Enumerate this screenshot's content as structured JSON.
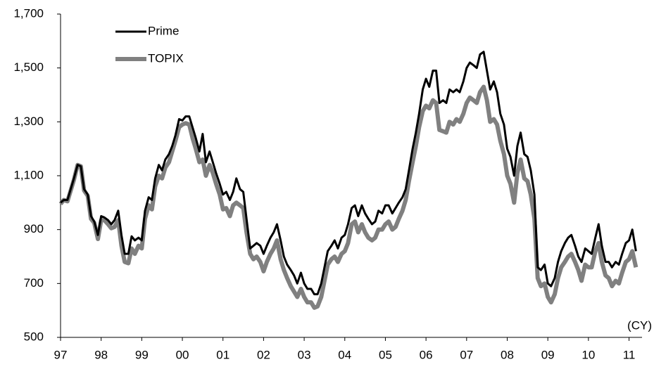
{
  "chart_data": {
    "type": "line",
    "x": [
      1997,
      1997.08,
      1997.17,
      1997.25,
      1997.33,
      1997.42,
      1997.5,
      1997.58,
      1997.67,
      1997.75,
      1997.83,
      1997.92,
      1998,
      1998.08,
      1998.17,
      1998.25,
      1998.33,
      1998.42,
      1998.5,
      1998.58,
      1998.67,
      1998.75,
      1998.83,
      1998.92,
      1999,
      1999.08,
      1999.17,
      1999.25,
      1999.33,
      1999.42,
      1999.5,
      1999.58,
      1999.67,
      1999.75,
      1999.83,
      1999.92,
      2000,
      2000.08,
      2000.17,
      2000.25,
      2000.33,
      2000.42,
      2000.5,
      2000.58,
      2000.67,
      2000.75,
      2000.83,
      2000.92,
      2001,
      2001.08,
      2001.17,
      2001.25,
      2001.33,
      2001.42,
      2001.5,
      2001.58,
      2001.67,
      2001.75,
      2001.83,
      2001.92,
      2002,
      2002.08,
      2002.17,
      2002.25,
      2002.33,
      2002.42,
      2002.5,
      2002.58,
      2002.67,
      2002.75,
      2002.83,
      2002.92,
      2003,
      2003.08,
      2003.17,
      2003.25,
      2003.33,
      2003.42,
      2003.5,
      2003.58,
      2003.67,
      2003.75,
      2003.83,
      2003.92,
      2004,
      2004.08,
      2004.17,
      2004.25,
      2004.33,
      2004.42,
      2004.5,
      2004.58,
      2004.67,
      2004.75,
      2004.83,
      2004.92,
      2005,
      2005.08,
      2005.17,
      2005.25,
      2005.33,
      2005.42,
      2005.5,
      2005.58,
      2005.67,
      2005.75,
      2005.83,
      2005.92,
      2006,
      2006.08,
      2006.17,
      2006.25,
      2006.33,
      2006.42,
      2006.5,
      2006.58,
      2006.67,
      2006.75,
      2006.83,
      2006.92,
      2007,
      2007.08,
      2007.17,
      2007.25,
      2007.33,
      2007.42,
      2007.5,
      2007.58,
      2007.67,
      2007.75,
      2007.83,
      2007.92,
      2008,
      2008.08,
      2008.17,
      2008.25,
      2008.33,
      2008.42,
      2008.5,
      2008.58,
      2008.67,
      2008.75,
      2008.83,
      2008.92,
      2009,
      2009.08,
      2009.17,
      2009.25,
      2009.33,
      2009.42,
      2009.5,
      2009.58,
      2009.67,
      2009.75,
      2009.83,
      2009.92,
      2010,
      2010.08,
      2010.17,
      2010.25,
      2010.33,
      2010.42,
      2010.5,
      2010.58,
      2010.67,
      2010.75,
      2010.83,
      2010.92,
      2011,
      2011.08,
      2011.17
    ],
    "series": [
      {
        "name": "Prime",
        "color": "#000000",
        "values": [
          1000,
          1010,
          1010,
          1050,
          1090,
          1140,
          1135,
          1050,
          1030,
          950,
          930,
          880,
          950,
          945,
          935,
          920,
          935,
          970,
          880,
          810,
          810,
          875,
          860,
          870,
          860,
          970,
          1020,
          1010,
          1090,
          1140,
          1120,
          1160,
          1180,
          1210,
          1250,
          1310,
          1305,
          1320,
          1320,
          1280,
          1240,
          1190,
          1255,
          1150,
          1190,
          1150,
          1110,
          1070,
          1030,
          1040,
          1010,
          1040,
          1090,
          1050,
          1040,
          940,
          830,
          840,
          850,
          840,
          810,
          840,
          870,
          890,
          920,
          860,
          800,
          770,
          750,
          730,
          700,
          740,
          700,
          680,
          680,
          660,
          660,
          700,
          760,
          820,
          840,
          860,
          830,
          870,
          880,
          920,
          980,
          990,
          950,
          990,
          960,
          940,
          920,
          930,
          970,
          960,
          990,
          990,
          960,
          980,
          1000,
          1020,
          1050,
          1120,
          1200,
          1260,
          1330,
          1420,
          1460,
          1430,
          1490,
          1490,
          1370,
          1380,
          1370,
          1420,
          1410,
          1420,
          1410,
          1450,
          1500,
          1520,
          1510,
          1500,
          1550,
          1560,
          1490,
          1420,
          1450,
          1410,
          1330,
          1290,
          1200,
          1170,
          1100,
          1210,
          1260,
          1180,
          1170,
          1120,
          1030,
          760,
          750,
          770,
          700,
          690,
          720,
          780,
          820,
          850,
          870,
          880,
          840,
          800,
          780,
          830,
          820,
          810,
          870,
          920,
          840,
          780,
          780,
          760,
          780,
          770,
          810,
          850,
          860,
          900,
          820
        ]
      },
      {
        "name": "TOPIX",
        "color": "#808080",
        "values": [
          995,
          1010,
          1005,
          1045,
          1085,
          1140,
          1135,
          1045,
          1025,
          940,
          925,
          865,
          935,
          935,
          920,
          905,
          910,
          935,
          840,
          780,
          775,
          830,
          810,
          840,
          830,
          940,
          990,
          975,
          1060,
          1100,
          1090,
          1130,
          1150,
          1190,
          1230,
          1280,
          1290,
          1295,
          1290,
          1240,
          1200,
          1150,
          1160,
          1100,
          1140,
          1110,
          1070,
          1030,
          975,
          980,
          950,
          990,
          1000,
          990,
          980,
          890,
          810,
          790,
          800,
          780,
          745,
          780,
          810,
          830,
          860,
          790,
          750,
          720,
          690,
          670,
          650,
          680,
          650,
          630,
          630,
          610,
          615,
          650,
          710,
          770,
          790,
          800,
          780,
          810,
          820,
          850,
          920,
          930,
          890,
          920,
          890,
          870,
          860,
          870,
          900,
          900,
          920,
          930,
          900,
          910,
          940,
          970,
          1010,
          1080,
          1150,
          1210,
          1280,
          1340,
          1360,
          1350,
          1380,
          1370,
          1270,
          1265,
          1260,
          1300,
          1290,
          1310,
          1300,
          1330,
          1370,
          1390,
          1380,
          1370,
          1410,
          1430,
          1380,
          1300,
          1310,
          1290,
          1230,
          1180,
          1100,
          1070,
          1000,
          1110,
          1160,
          1090,
          1080,
          1030,
          940,
          720,
          690,
          700,
          650,
          630,
          660,
          720,
          760,
          780,
          800,
          810,
          780,
          750,
          710,
          770,
          760,
          760,
          820,
          850,
          780,
          730,
          720,
          690,
          710,
          700,
          740,
          780,
          790,
          820,
          760
        ]
      }
    ],
    "xlim": [
      1997,
      2011.32
    ],
    "xticks": [
      {
        "value": 1997,
        "label": "97"
      },
      {
        "value": 1998,
        "label": "98"
      },
      {
        "value": 1999,
        "label": "99"
      },
      {
        "value": 2000,
        "label": "00"
      },
      {
        "value": 2001,
        "label": "01"
      },
      {
        "value": 2002,
        "label": "02"
      },
      {
        "value": 2003,
        "label": "03"
      },
      {
        "value": 2004,
        "label": "04"
      },
      {
        "value": 2005,
        "label": "05"
      },
      {
        "value": 2006,
        "label": "06"
      },
      {
        "value": 2007,
        "label": "07"
      },
      {
        "value": 2008,
        "label": "08"
      },
      {
        "value": 2009,
        "label": "09"
      },
      {
        "value": 2010,
        "label": "10"
      },
      {
        "value": 2011,
        "label": "11"
      }
    ],
    "ylim": [
      500,
      1700
    ],
    "yticks": [
      500,
      700,
      900,
      {
        "value": 1100,
        "label": "1,100"
      },
      {
        "value": 1300,
        "label": "1,300"
      },
      {
        "value": 1500,
        "label": "1,500"
      },
      {
        "value": 1700,
        "label": "1,700"
      }
    ],
    "x_unit_label": "(CY)",
    "legend": "upper left",
    "grid": false
  }
}
